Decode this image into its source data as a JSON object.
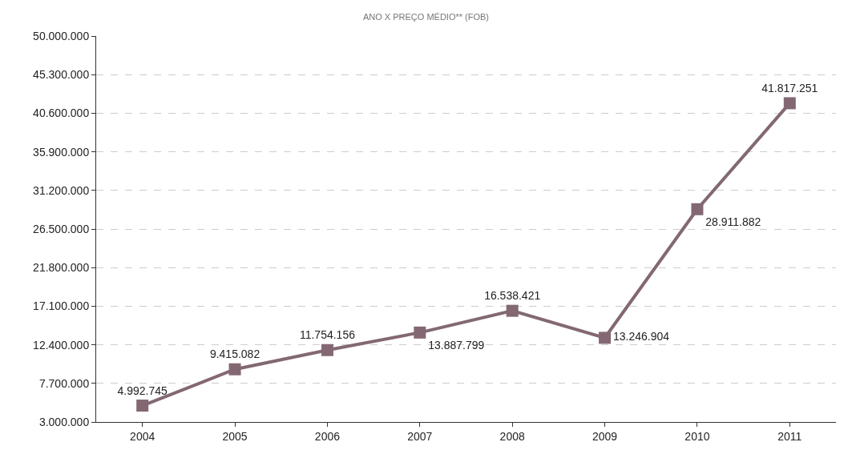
{
  "chart_data": {
    "type": "line",
    "title": "ANO X PREÇO MÉDIO** (FOB)",
    "categories": [
      "2004",
      "2005",
      "2006",
      "2007",
      "2008",
      "2009",
      "2010",
      "2011"
    ],
    "series": [
      {
        "color": "#836873",
        "values": [
          4992745,
          9415082,
          11754156,
          13887799,
          16538421,
          13246904,
          28911882,
          41817251
        ],
        "value_labels": [
          "4.992.745",
          "9.415.082",
          "11.754.156",
          "13.887.799",
          "16.538.421",
          "13.246.904",
          "28.911.882",
          "41.817.251"
        ]
      }
    ],
    "ylim": [
      3000000,
      50000000
    ],
    "yticks": [
      {
        "value": 3000000,
        "label": "3.000.000"
      },
      {
        "value": 7700000,
        "label": "7.700.000"
      },
      {
        "value": 12400000,
        "label": "12.400.000"
      },
      {
        "value": 17100000,
        "label": "17.100.000"
      },
      {
        "value": 21800000,
        "label": "21.800.000"
      },
      {
        "value": 26500000,
        "label": "26.500.000"
      },
      {
        "value": 31200000,
        "label": "31.200.000"
      },
      {
        "value": 35900000,
        "label": "35.900.000"
      },
      {
        "value": 40600000,
        "label": "40.600.000"
      },
      {
        "value": 45300000,
        "label": "45.300.000"
      },
      {
        "value": 50000000,
        "label": "50.000.000"
      }
    ],
    "grid": "y",
    "marker": "square",
    "line_style": "solid"
  }
}
